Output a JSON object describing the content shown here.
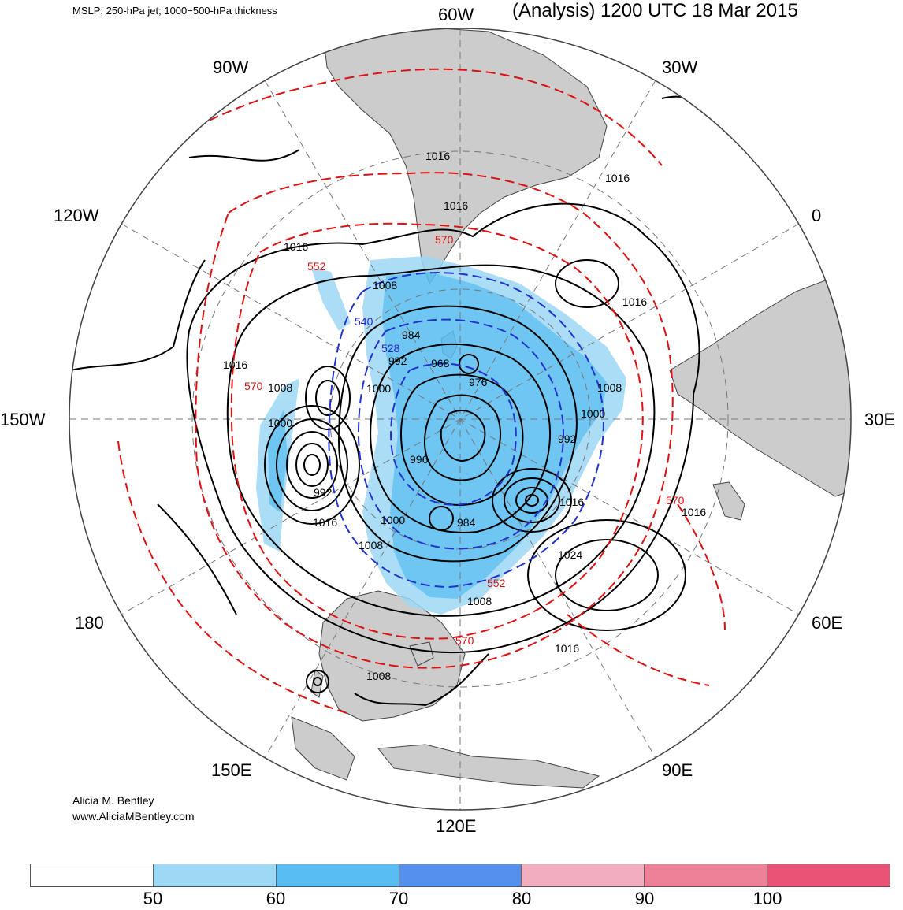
{
  "header": {
    "fields": "MSLP; 250-hPa jet; 1000−500-hPa thickness",
    "title": "(Analysis) 1200 UTC 18 Mar 2015"
  },
  "credit": {
    "name": "Alicia M. Bentley",
    "url": "www.AliciaMBentley.com"
  },
  "longitude_labels": [
    "60W",
    "30W",
    "0",
    "30E",
    "60E",
    "90E",
    "120E",
    "150E",
    "180",
    "150W",
    "120W",
    "90W"
  ],
  "pressure_labels": [
    "1016",
    "1016",
    "1016",
    "1016",
    "1016",
    "1016",
    "1008",
    "984",
    "992",
    "968",
    "976",
    "1000",
    "1008",
    "1000",
    "992",
    "992",
    "1016",
    "1000",
    "1008",
    "984",
    "1024",
    "1008",
    "1016",
    "1008",
    "1016",
    "1016",
    "1000",
    "996",
    "1008"
  ],
  "thickness_labels_red": [
    "570",
    "552",
    "570",
    "570",
    "552",
    "570"
  ],
  "thickness_labels_blue": [
    "540",
    "528"
  ],
  "colorbar": {
    "ticks": [
      "50",
      "60",
      "70",
      "80",
      "90",
      "100"
    ],
    "colors": [
      "#ffffff",
      "#9dd8f5",
      "#57bdf2",
      "#5590ee",
      "#f2adc0",
      "#ee8098",
      "#ea5276"
    ]
  },
  "styles": {
    "land": "#cccccc",
    "ocean": "#ffffff",
    "mslp_color": "#000000",
    "thickness_color": "#dd1111",
    "cold_thickness_color": "#2233cc",
    "grid_color": "#777777"
  }
}
